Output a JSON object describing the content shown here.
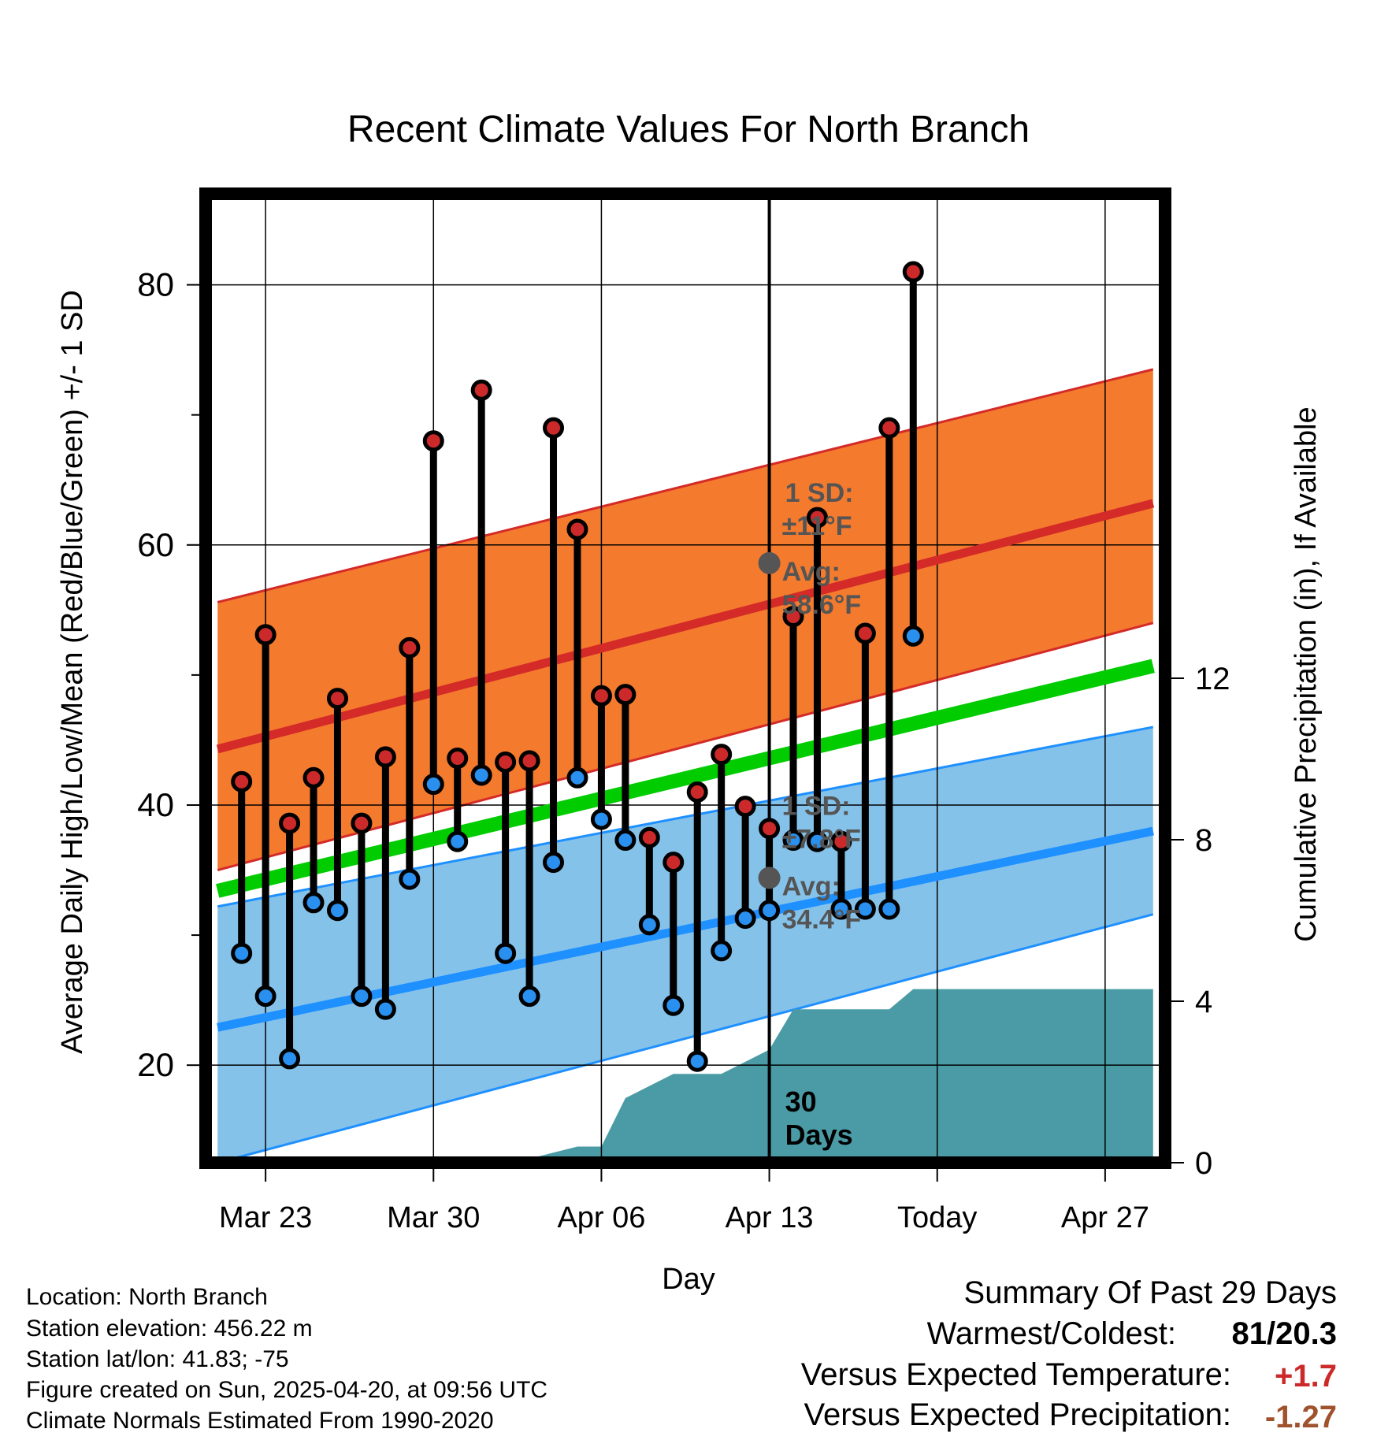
{
  "chart_data": {
    "type": "line",
    "title": "Recent Climate Values For North Branch",
    "xlabel": "Day",
    "ylabel": "Average Daily High/Low/Mean (Red/Blue/Green) +/- 1 SD",
    "y2label": "Cumulative Precipitation (in), If Available",
    "x_tick_labels": [
      "Mar 23",
      "Mar 30",
      "Apr 06",
      "Apr 13",
      "Today",
      "Apr 27"
    ],
    "y_ticks": [
      20,
      40,
      60,
      80
    ],
    "y2_ticks": [
      0,
      4,
      8,
      12
    ],
    "x_range_days": [
      -23.5,
      16.5
    ],
    "ylim": [
      12.5,
      87
    ],
    "y2lim": [
      0,
      24
    ],
    "grid": true,
    "today_label": "Today",
    "daily": {
      "day": [
        -22,
        -21,
        -20,
        -19,
        -18,
        -17,
        -16,
        -15,
        -14,
        -13,
        -12,
        -11,
        -10,
        -9,
        -8,
        -7,
        -6,
        -5,
        -4,
        -3,
        -2,
        -1,
        0,
        1,
        2,
        3,
        4,
        5,
        6
      ],
      "high": [
        41.8,
        53.1,
        38.6,
        42.1,
        48.2,
        38.6,
        43.7,
        52.1,
        68.0,
        43.6,
        71.9,
        43.3,
        43.4,
        69.0,
        61.2,
        48.4,
        48.5,
        37.5,
        35.6,
        41.0,
        43.9,
        39.9,
        38.2,
        54.5,
        62.1,
        37.2,
        53.2,
        69.0,
        81.0
      ],
      "low": [
        28.6,
        25.3,
        20.5,
        32.5,
        31.9,
        25.3,
        24.3,
        34.3,
        41.6,
        37.2,
        42.3,
        28.6,
        25.3,
        35.6,
        42.1,
        38.9,
        37.3,
        30.8,
        24.6,
        20.3,
        28.8,
        31.3,
        31.9,
        37.3,
        37.2,
        32.0,
        32.0,
        32.0,
        53.0
      ]
    },
    "normals": {
      "day": [
        -23,
        16
      ],
      "avg_high": [
        44.3,
        63.2
      ],
      "high_upper": [
        55.6,
        73.5
      ],
      "high_lower": [
        35.0,
        54.0
      ],
      "avg_mean": [
        33.4,
        50.7
      ],
      "avg_low": [
        22.9,
        38.0
      ],
      "low_upper": [
        32.2,
        46.0
      ],
      "low_lower": [
        12.5,
        31.6
      ]
    },
    "precip": {
      "day": [
        -23,
        -10,
        -8,
        -7,
        -6,
        -5,
        -4,
        -3,
        -2,
        -1,
        0,
        1,
        2,
        3,
        4,
        5,
        6,
        7,
        16
      ],
      "cumulative": [
        0,
        0.1,
        0.4,
        0.4,
        1.6,
        1.9,
        2.2,
        2.2,
        2.2,
        2.5,
        2.8,
        3.8,
        3.8,
        3.8,
        3.8,
        3.8,
        4.3,
        4.3,
        4.3
      ]
    },
    "annotations": {
      "high_sd_label": "1 SD:",
      "high_sd_value": "±11°F",
      "high_avg_label": "Avg:",
      "high_avg_value": "58.6°F",
      "high_avg_today": 58.6,
      "low_sd_label": "1 SD:",
      "low_sd_value": "±7.8°F",
      "low_avg_label": "Avg:",
      "low_avg_value": "34.4°F",
      "low_avg_today": 34.4,
      "window_label_1": "30",
      "window_label_2": "Days"
    },
    "colors": {
      "high_band": "#f47a2e",
      "high_line": "#d42a28",
      "high_dot": "#cc2a2a",
      "low_band": "#85c2ea",
      "low_line": "#1e90ff",
      "low_dot": "#2990f0",
      "mean_line": "#00cc00",
      "precip": "#4a9ba5",
      "annot": "#555555",
      "positive": "#cc2a2a",
      "negative": "#a0522d"
    }
  },
  "footer": {
    "location": "Location: North Branch",
    "elevation": "Station elevation: 456.22 m",
    "latlon": "Station lat/lon: 41.83; -75",
    "created": "Figure created on Sun, 2025-04-20, at 09:56 UTC",
    "normals": "Climate Normals Estimated From 1990-2020"
  },
  "summary": {
    "title": "Summary Of Past 29 Days",
    "warm_cold_label": "Warmest/Coldest:",
    "warm_cold_value": "81/20.3",
    "temp_label": "Versus Expected Temperature:",
    "temp_value": "+1.7",
    "precip_label": "Versus Expected Precipitation:",
    "precip_value": "-1.27"
  }
}
